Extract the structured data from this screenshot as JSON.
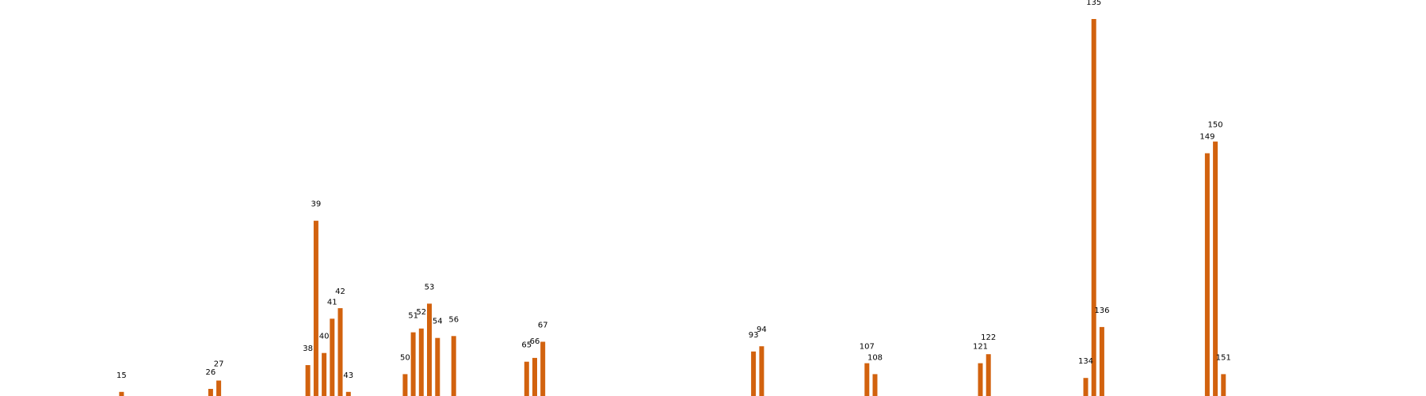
{
  "chart_data": {
    "type": "bar",
    "title": "",
    "xlabel": "",
    "ylabel": "",
    "bar_color": "#d2620e",
    "background": "#ffffff",
    "grid": false,
    "axes_visible": false,
    "xlim": [
      0,
      176
    ],
    "ylim": [
      0,
      100
    ],
    "points": [
      {
        "x": 15,
        "y": 1.1
      },
      {
        "x": 26,
        "y": 1.9
      },
      {
        "x": 27,
        "y": 4.1
      },
      {
        "x": 38,
        "y": 8.2
      },
      {
        "x": 39,
        "y": 46.5
      },
      {
        "x": 40,
        "y": 11.4
      },
      {
        "x": 41,
        "y": 20.5
      },
      {
        "x": 42,
        "y": 23.3
      },
      {
        "x": 43,
        "y": 1.1
      },
      {
        "x": 50,
        "y": 5.8
      },
      {
        "x": 51,
        "y": 16.9
      },
      {
        "x": 52,
        "y": 17.9
      },
      {
        "x": 53,
        "y": 24.5
      },
      {
        "x": 54,
        "y": 15.4
      },
      {
        "x": 56,
        "y": 15.9
      },
      {
        "x": 65,
        "y": 9.1
      },
      {
        "x": 66,
        "y": 10.1
      },
      {
        "x": 67,
        "y": 14.4
      },
      {
        "x": 93,
        "y": 11.8
      },
      {
        "x": 94,
        "y": 13.2
      },
      {
        "x": 107,
        "y": 8.7
      },
      {
        "x": 108,
        "y": 5.8
      },
      {
        "x": 121,
        "y": 8.7
      },
      {
        "x": 122,
        "y": 11.1
      },
      {
        "x": 134,
        "y": 4.8
      },
      {
        "x": 135,
        "y": 100.0
      },
      {
        "x": 136,
        "y": 18.3
      },
      {
        "x": 149,
        "y": 64.4
      },
      {
        "x": 150,
        "y": 67.5
      },
      {
        "x": 151,
        "y": 5.8
      }
    ]
  }
}
